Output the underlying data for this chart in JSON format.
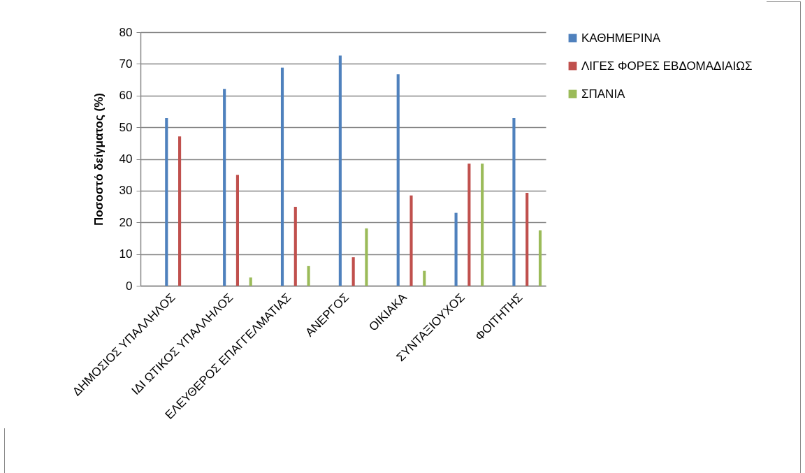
{
  "chart_data": {
    "type": "bar",
    "ylabel": "Ποσοστό δείγματος (%)",
    "categories": [
      "ΔΗΜΟΣΙΟΣ ΥΠΑΛΛΗΛΟΣ",
      "ΙΔΙ ΩΤΙΚΟΣ ΥΠΑΛΛΗΛΟΣ",
      "ΕΛΕΥΘΕΡΟΣ ΕΠΑΓΓΕΛΜΑΤΙΑΣ",
      "ΑΝΕΡΓΟΣ",
      "ΟΙΚΙΑΚΑ",
      "ΣΥΝΤΑΞΙΟΥΧΟΣ",
      "ΦΟΙΤΗΤΗΣ"
    ],
    "series": [
      {
        "name": "ΚΑΘΗΜΕΡΙΝΑ",
        "color": "#4f81bd",
        "values": [
          52.9,
          62.1,
          68.8,
          72.6,
          66.7,
          23.0,
          52.9
        ]
      },
      {
        "name": "ΛΙΓΕΣ ΦΟΡΕΣ ΕΒΔΟΜΑΔΙΑΙΩΣ",
        "color": "#c0504d",
        "values": [
          47.1,
          35.0,
          24.9,
          9.0,
          28.5,
          38.5,
          29.3
        ]
      },
      {
        "name": "ΣΠΑΝΙΑ",
        "color": "#9bbb59",
        "values": [
          0,
          2.6,
          6.2,
          18.1,
          4.7,
          38.5,
          17.5
        ]
      }
    ],
    "ylim": [
      0,
      80
    ],
    "yticks": [
      0,
      10,
      20,
      30,
      40,
      50,
      60,
      70,
      80
    ],
    "grid": "y",
    "legend": "right"
  }
}
